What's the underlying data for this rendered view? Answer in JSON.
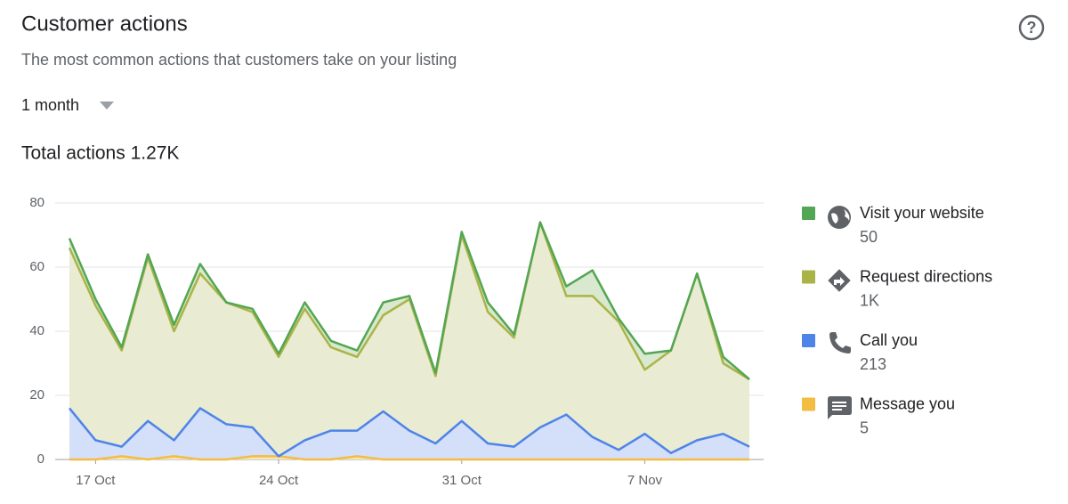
{
  "header": {
    "title": "Customer actions",
    "subtitle": "The most common actions that customers take on your listing",
    "period": "1 month",
    "total": "Total actions 1.27K"
  },
  "chart_data": {
    "type": "stacked-area",
    "categories": [
      null,
      "17 Oct",
      null,
      null,
      null,
      null,
      null,
      null,
      "24 Oct",
      null,
      null,
      null,
      null,
      null,
      null,
      "31 Oct",
      null,
      null,
      null,
      null,
      null,
      null,
      "7 Nov",
      null,
      null,
      null,
      null
    ],
    "ylim": [
      0,
      80
    ],
    "yticks": [
      0,
      20,
      40,
      60,
      80
    ],
    "grid": true,
    "series": [
      {
        "name": "Visit your website",
        "total": "50",
        "color": "#53a653",
        "fill": "#d8e9cf",
        "values": [
          3,
          2,
          1,
          1,
          2,
          3,
          0,
          1,
          1,
          2,
          2,
          2,
          4,
          1,
          1,
          1,
          3,
          1,
          0,
          3,
          8,
          1,
          5,
          0,
          0,
          2,
          0
        ]
      },
      {
        "name": "Request directions",
        "total": "1K",
        "color": "#aab446",
        "fill": "#e9ebd3",
        "values": [
          50,
          42,
          30,
          51,
          34,
          42,
          38,
          36,
          31,
          41,
          26,
          23,
          30,
          41,
          21,
          58,
          41,
          34,
          64,
          37,
          44,
          40,
          20,
          32,
          52,
          22,
          21
        ]
      },
      {
        "name": "Call you",
        "total": "213",
        "color": "#4e84e8",
        "fill": "#d4dff9",
        "values": [
          16,
          6,
          3,
          12,
          5,
          16,
          11,
          9,
          0,
          6,
          9,
          8,
          15,
          9,
          5,
          12,
          5,
          4,
          10,
          14,
          7,
          3,
          8,
          2,
          6,
          8,
          4
        ]
      },
      {
        "name": "Message you",
        "total": "5",
        "color": "#f2bd42",
        "fill": "#f7e6bd",
        "values": [
          0,
          0,
          1,
          0,
          1,
          0,
          0,
          1,
          1,
          0,
          0,
          1,
          0,
          0,
          0,
          0,
          0,
          0,
          0,
          0,
          0,
          0,
          0,
          0,
          0,
          0,
          0
        ]
      }
    ]
  }
}
